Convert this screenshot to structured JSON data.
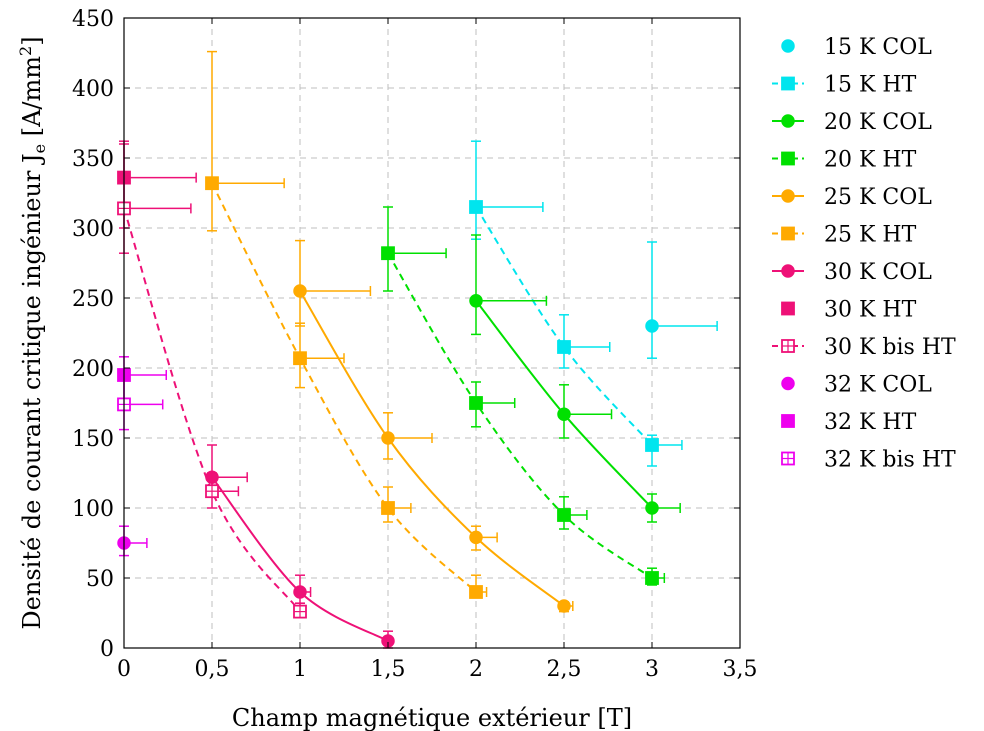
{
  "chart_data": {
    "type": "scatter",
    "xlabel": "Champ magnétique extérieur [T]",
    "ylabel_parts": {
      "main": "Densité de courant critique ingénieur J",
      "sub": "e",
      "unit_open": " [A/mm",
      "unit_sup": "2",
      "unit_close": "]"
    },
    "xlim": [
      0,
      3.5
    ],
    "ylim": [
      0,
      450
    ],
    "xticks": [
      0,
      0.5,
      1,
      1.5,
      2,
      2.5,
      3,
      3.5
    ],
    "xtick_labels": [
      "0",
      "0,5",
      "1",
      "1,5",
      "2",
      "2,5",
      "3",
      "3,5"
    ],
    "yticks": [
      0,
      50,
      100,
      150,
      200,
      250,
      300,
      350,
      400,
      450
    ],
    "ytick_labels": [
      "0",
      "50",
      "100",
      "150",
      "200",
      "250",
      "300",
      "350",
      "400",
      "450"
    ],
    "grid": true,
    "legend_position": "right",
    "series": [
      {
        "name": "15 K COL",
        "color": "#00e5ee",
        "marker": "circle",
        "fill": true,
        "line": "none",
        "points": [
          {
            "x": 3.0,
            "y": 230,
            "yerr_low": 207,
            "yerr_high": 290,
            "xerr_low": 3.0,
            "xerr_high": 3.37
          }
        ]
      },
      {
        "name": "15 K HT",
        "color": "#00e5ee",
        "marker": "square",
        "fill": true,
        "line": "dashed",
        "points": [
          {
            "x": 2.0,
            "y": 315,
            "yerr_low": 292,
            "yerr_high": 362,
            "xerr_low": 2.0,
            "xerr_high": 2.38
          },
          {
            "x": 2.5,
            "y": 215,
            "yerr_low": 200,
            "yerr_high": 238,
            "xerr_low": 2.5,
            "xerr_high": 2.76
          },
          {
            "x": 3.0,
            "y": 145,
            "yerr_low": 130,
            "yerr_high": 152,
            "xerr_low": 3.0,
            "xerr_high": 3.17
          }
        ]
      },
      {
        "name": "20 K COL",
        "color": "#00e000",
        "marker": "circle",
        "fill": true,
        "line": "solid",
        "points": [
          {
            "x": 2.0,
            "y": 248,
            "yerr_low": 224,
            "yerr_high": 295,
            "xerr_low": 2.0,
            "xerr_high": 2.4
          },
          {
            "x": 2.5,
            "y": 167,
            "yerr_low": 150,
            "yerr_high": 188,
            "xerr_low": 2.5,
            "xerr_high": 2.77
          },
          {
            "x": 3.0,
            "y": 100,
            "yerr_low": 90,
            "yerr_high": 110,
            "xerr_low": 3.0,
            "xerr_high": 3.16
          }
        ]
      },
      {
        "name": "20 K HT",
        "color": "#00e000",
        "marker": "square",
        "fill": true,
        "line": "dashed",
        "points": [
          {
            "x": 1.5,
            "y": 282,
            "yerr_low": 255,
            "yerr_high": 315,
            "xerr_low": 1.5,
            "xerr_high": 1.83
          },
          {
            "x": 2.0,
            "y": 175,
            "yerr_low": 158,
            "yerr_high": 190,
            "xerr_low": 2.0,
            "xerr_high": 2.22
          },
          {
            "x": 2.5,
            "y": 95,
            "yerr_low": 85,
            "yerr_high": 108,
            "xerr_low": 2.5,
            "xerr_high": 2.63
          },
          {
            "x": 3.0,
            "y": 50,
            "yerr_low": 45,
            "yerr_high": 57,
            "xerr_low": 3.0,
            "xerr_high": 3.07
          }
        ]
      },
      {
        "name": "25 K COL",
        "color": "#ffaa00",
        "marker": "circle",
        "fill": true,
        "line": "solid",
        "points": [
          {
            "x": 1.0,
            "y": 255,
            "yerr_low": 230,
            "yerr_high": 291,
            "xerr_low": 1.0,
            "xerr_high": 1.4
          },
          {
            "x": 1.5,
            "y": 150,
            "yerr_low": 135,
            "yerr_high": 168,
            "xerr_low": 1.5,
            "xerr_high": 1.75
          },
          {
            "x": 2.0,
            "y": 79,
            "yerr_low": 70,
            "yerr_high": 87,
            "xerr_low": 2.0,
            "xerr_high": 2.12
          },
          {
            "x": 2.5,
            "y": 30,
            "yerr_low": 26,
            "yerr_high": 33,
            "xerr_low": 2.5,
            "xerr_high": 2.55
          }
        ]
      },
      {
        "name": "25 K HT",
        "color": "#ffaa00",
        "marker": "square",
        "fill": true,
        "line": "dashed",
        "points": [
          {
            "x": 0.5,
            "y": 332,
            "yerr_low": 298,
            "yerr_high": 426,
            "xerr_low": 0.5,
            "xerr_high": 0.91
          },
          {
            "x": 1.0,
            "y": 207,
            "yerr_low": 186,
            "yerr_high": 232,
            "xerr_low": 1.0,
            "xerr_high": 1.25
          },
          {
            "x": 1.5,
            "y": 100,
            "yerr_low": 90,
            "yerr_high": 115,
            "xerr_low": 1.5,
            "xerr_high": 1.63
          },
          {
            "x": 2.0,
            "y": 40,
            "yerr_low": 36,
            "yerr_high": 52,
            "xerr_low": 2.0,
            "xerr_high": 2.06
          }
        ]
      },
      {
        "name": "30 K COL",
        "color": "#ee1177",
        "marker": "circle",
        "fill": true,
        "line": "solid",
        "points": [
          {
            "x": 0.5,
            "y": 122,
            "yerr_low": 110,
            "yerr_high": 145,
            "xerr_low": 0.5,
            "xerr_high": 0.7
          },
          {
            "x": 1.0,
            "y": 40,
            "yerr_low": 32,
            "yerr_high": 52,
            "xerr_low": 1.0,
            "xerr_high": 1.06
          },
          {
            "x": 1.5,
            "y": 5,
            "yerr_low": 0,
            "yerr_high": 12,
            "xerr_low": 1.5,
            "xerr_high": 1.5
          }
        ]
      },
      {
        "name": "30 K HT",
        "color": "#ee1177",
        "marker": "square",
        "fill": true,
        "line": "none",
        "points": [
          {
            "x": 0.0,
            "y": 336,
            "yerr_low": 300,
            "yerr_high": 362,
            "xerr_low": 0.0,
            "xerr_high": 0.41
          }
        ]
      },
      {
        "name": "30 K bis HT",
        "color": "#ee1177",
        "marker": "square",
        "fill": false,
        "line": "dashed",
        "points": [
          {
            "x": 0.0,
            "y": 314,
            "yerr_low": 282,
            "yerr_high": 360,
            "xerr_low": 0.0,
            "xerr_high": 0.38
          },
          {
            "x": 0.5,
            "y": 112,
            "yerr_low": 100,
            "yerr_high": 125,
            "xerr_low": 0.5,
            "xerr_high": 0.65
          },
          {
            "x": 1.0,
            "y": 26,
            "yerr_low": 22,
            "yerr_high": 32,
            "xerr_low": 1.0,
            "xerr_high": 1.03
          }
        ]
      },
      {
        "name": "32 K COL",
        "color": "#ee00ee",
        "marker": "circle",
        "fill": true,
        "line": "none",
        "points": [
          {
            "x": 0.0,
            "y": 75,
            "yerr_low": 66,
            "yerr_high": 87,
            "xerr_low": 0.0,
            "xerr_high": 0.13
          }
        ]
      },
      {
        "name": "32 K HT",
        "color": "#ee00ee",
        "marker": "square",
        "fill": true,
        "line": "none",
        "points": [
          {
            "x": 0.0,
            "y": 195,
            "yerr_low": 176,
            "yerr_high": 208,
            "xerr_low": 0.0,
            "xerr_high": 0.24
          }
        ]
      },
      {
        "name": "32 K bis HT",
        "color": "#ee00ee",
        "marker": "square",
        "fill": false,
        "line": "none",
        "points": [
          {
            "x": 0.0,
            "y": 174,
            "yerr_low": 156,
            "yerr_high": 191,
            "xerr_low": 0.0,
            "xerr_high": 0.22
          }
        ]
      }
    ]
  }
}
